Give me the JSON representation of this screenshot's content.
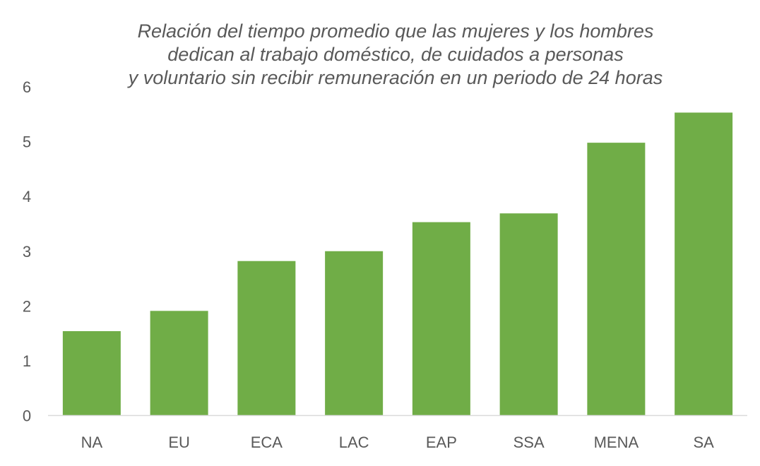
{
  "chart_data": {
    "type": "bar",
    "title_lines": [
      "Relación del tiempo promedio que las mujeres y los hombres",
      "dedican al trabajo doméstico, de cuidados a personas",
      "y voluntario sin recibir remuneración en un periodo de 24 horas"
    ],
    "categories": [
      "NA",
      "EU",
      "ECA",
      "LAC",
      "EAP",
      "SSA",
      "MENA",
      "SA"
    ],
    "values": [
      1.54,
      1.91,
      2.82,
      3.0,
      3.53,
      3.69,
      4.98,
      5.53
    ],
    "ylim": [
      0,
      6
    ],
    "yticks": [
      "0",
      "1",
      "2",
      "3",
      "4",
      "5",
      "6"
    ],
    "xlabel": "",
    "ylabel": "",
    "grid": false,
    "bar_color": "#70AD47",
    "axis_color": "#D9D9D9",
    "text_color": "#595959"
  }
}
